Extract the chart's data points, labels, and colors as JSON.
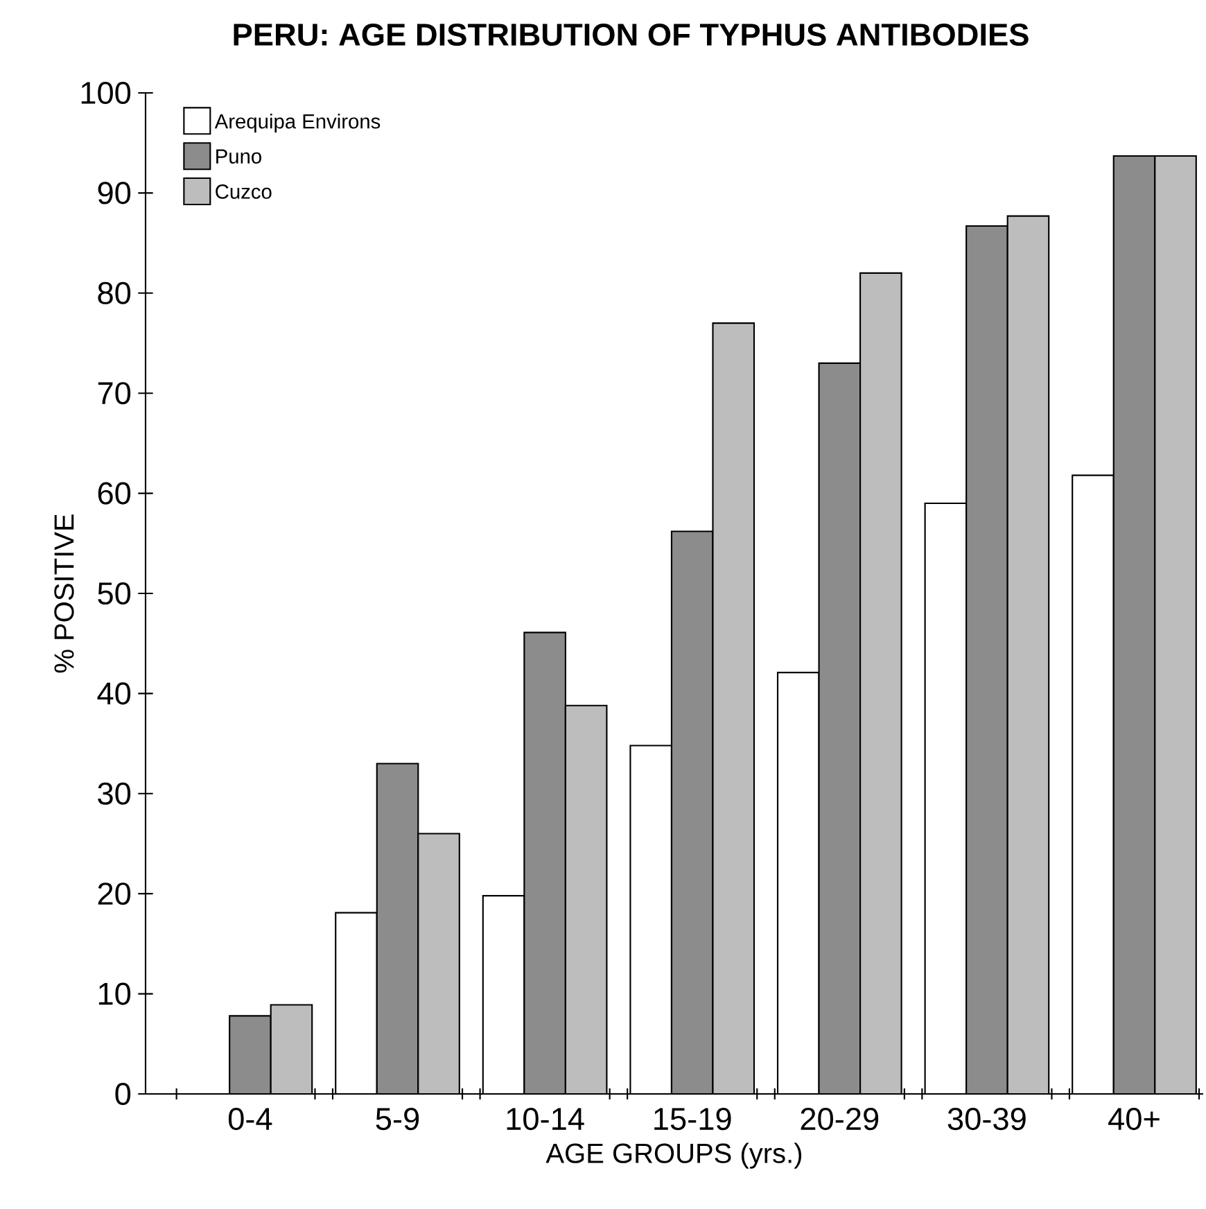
{
  "chart_data": {
    "type": "bar",
    "title": "PERU:  AGE DISTRIBUTION OF TYPHUS ANTIBODIES",
    "xlabel": "AGE GROUPS  (yrs.)",
    "ylabel": "% POSITIVE",
    "categories": [
      "0-4",
      "5-9",
      "10-14",
      "15-19",
      "20-29",
      "30-39",
      "40+"
    ],
    "series": [
      {
        "name": "Arequipa Environs",
        "color": "#ffffff",
        "values": [
          null,
          18.1,
          19.8,
          34.8,
          42.1,
          59.0,
          61.8
        ]
      },
      {
        "name": "Puno",
        "color": "#8c8c8c",
        "values": [
          7.8,
          33.0,
          46.1,
          56.2,
          73.0,
          86.7,
          93.7
        ]
      },
      {
        "name": "Cuzco",
        "color": "#bdbdbd",
        "values": [
          8.9,
          26.0,
          38.8,
          77.0,
          82.0,
          87.7,
          93.7
        ]
      }
    ],
    "ylim": [
      0,
      100
    ],
    "yticks": [
      0,
      10,
      20,
      30,
      40,
      50,
      60,
      70,
      80,
      90,
      100
    ],
    "grid": false,
    "legend": "top left"
  }
}
